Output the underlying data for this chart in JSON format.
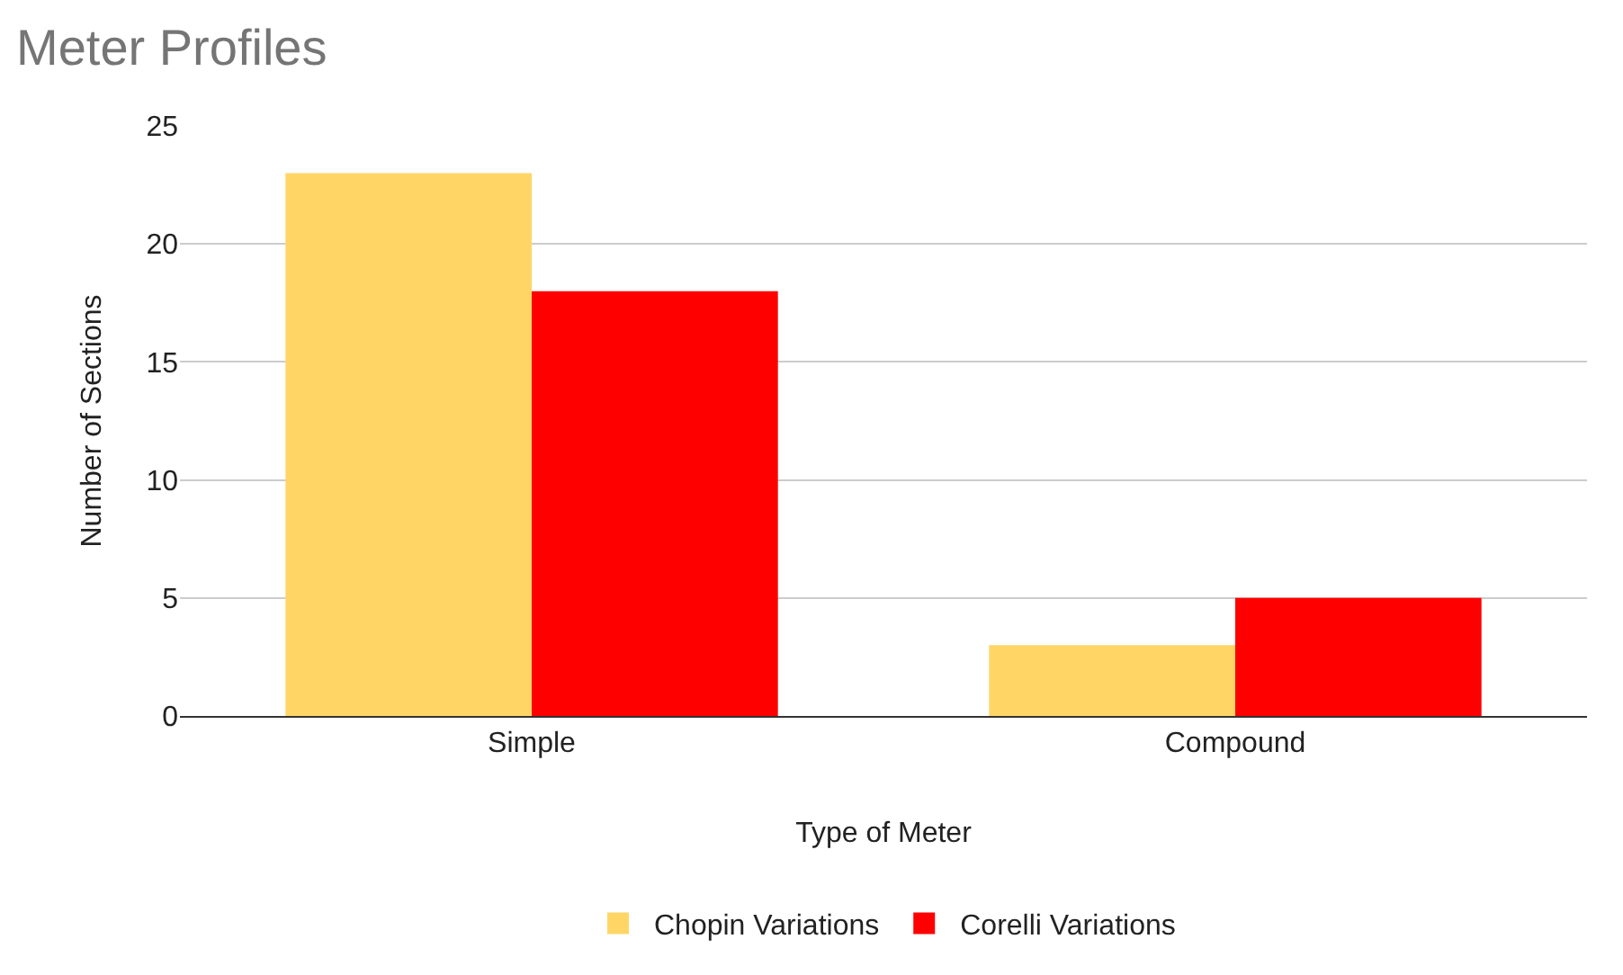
{
  "chart_data": {
    "type": "bar",
    "title": "Meter Profiles",
    "xlabel": "Type of Meter",
    "ylabel": "Number of Sections",
    "categories": [
      "Simple",
      "Compound"
    ],
    "series": [
      {
        "name": "Chopin Variations",
        "color": "#ffd666",
        "values": [
          23,
          3
        ]
      },
      {
        "name": "Corelli Variations",
        "color": "#ff0000",
        "values": [
          18,
          5
        ]
      }
    ],
    "ylim": [
      0,
      25
    ],
    "yticks": [
      0,
      5,
      10,
      15,
      20,
      25
    ],
    "grid": "y",
    "legend": "bottom"
  }
}
